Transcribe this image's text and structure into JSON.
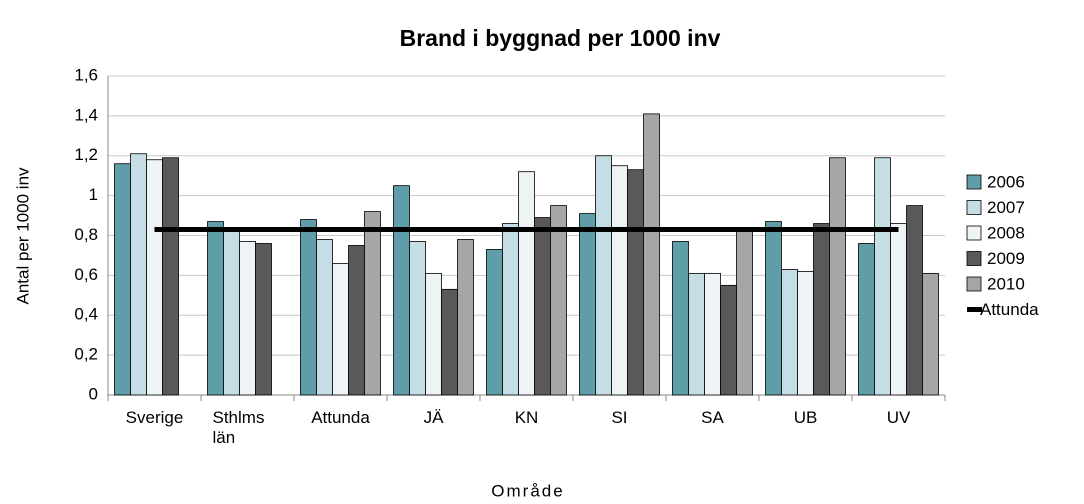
{
  "chart_data": {
    "type": "bar",
    "title": "Brand i byggnad per 1000 inv",
    "x_label": "Område",
    "y_label": "Antal per 1000 inv",
    "categories": [
      "Sverige",
      "Sthlms län",
      "Attunda",
      "JÄ",
      "KN",
      "SI",
      "SA",
      "UB",
      "UV"
    ],
    "series": [
      {
        "name": "2006",
        "color": "#5f9ea8",
        "values": [
          1.16,
          0.87,
          0.88,
          1.05,
          0.73,
          0.91,
          0.77,
          0.87,
          0.76
        ]
      },
      {
        "name": "2007",
        "color": "#c5dde5",
        "values": [
          1.21,
          0.84,
          0.78,
          0.77,
          0.86,
          1.2,
          0.61,
          0.63,
          1.19
        ]
      },
      {
        "name": "2008",
        "color": "#eef3f6",
        "values": [
          1.18,
          0.77,
          0.66,
          0.61,
          1.12,
          1.15,
          0.61,
          0.62,
          0.86
        ]
      },
      {
        "name": "2009",
        "color": "#595959",
        "values": [
          1.19,
          0.76,
          0.75,
          0.53,
          0.89,
          1.13,
          0.55,
          0.86,
          0.95
        ]
      },
      {
        "name": "2010",
        "color": "#a6a6a6",
        "values": [
          null,
          null,
          0.92,
          0.78,
          0.95,
          1.41,
          0.84,
          1.19,
          0.61
        ]
      },
      {
        "name": "Attunda",
        "type": "line",
        "color": "#000000",
        "values": [
          0.83,
          0.83,
          0.83,
          0.83,
          0.83,
          0.83,
          0.83,
          0.83,
          0.83
        ]
      }
    ],
    "ylim": [
      0,
      1.6
    ],
    "yticks": [
      0,
      {
        "value": 0.2,
        "label": "0,2"
      },
      {
        "value": 0.4,
        "label": "0,4"
      },
      {
        "value": 0.6,
        "label": "0,6"
      },
      {
        "value": 0.8,
        "label": "0,8"
      },
      1,
      {
        "value": 1.2,
        "label": "1,2"
      },
      {
        "value": 1.4,
        "label": "1,4"
      },
      {
        "value": 1.6,
        "label": "1,6"
      }
    ],
    "grid": true,
    "legend": "right"
  }
}
